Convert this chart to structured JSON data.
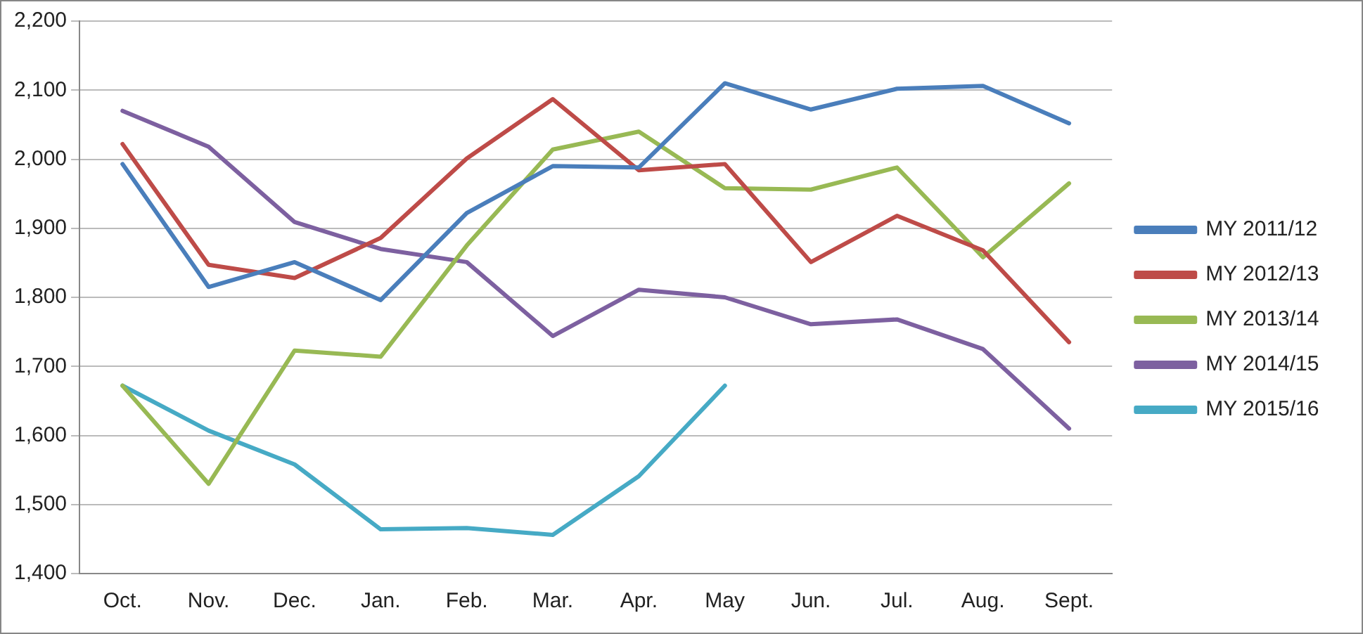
{
  "chart_data": {
    "type": "line",
    "categories": [
      "Oct.",
      "Nov.",
      "Dec.",
      "Jan.",
      "Feb.",
      "Mar.",
      "Apr.",
      "May",
      "Jun.",
      "Jul.",
      "Aug.",
      "Sept."
    ],
    "series": [
      {
        "name": "MY 2011/12",
        "color": "#4a7ebb",
        "values": [
          1993,
          1815,
          1851,
          1796,
          1922,
          1990,
          1988,
          2110,
          2072,
          2102,
          2106,
          2052
        ]
      },
      {
        "name": "MY 2012/13",
        "color": "#be4b48",
        "values": [
          2022,
          1847,
          1828,
          1886,
          2001,
          2087,
          1984,
          1993,
          1851,
          1918,
          1868,
          1735
        ]
      },
      {
        "name": "MY 2013/14",
        "color": "#98b954",
        "values": [
          1672,
          1530,
          1723,
          1714,
          1875,
          2014,
          2040,
          1958,
          1956,
          1988,
          1858,
          1965
        ]
      },
      {
        "name": "MY 2014/15",
        "color": "#7d60a0",
        "values": [
          2070,
          2018,
          1909,
          1870,
          1851,
          1744,
          1811,
          1800,
          1761,
          1768,
          1725,
          1610
        ]
      },
      {
        "name": "MY 2015/16",
        "color": "#46aac5",
        "values": [
          1672,
          1607,
          1558,
          1464,
          1466,
          1456,
          1541,
          1672,
          null,
          null,
          null,
          null
        ]
      }
    ],
    "ylim": [
      1400,
      2200
    ],
    "yticks": [
      {
        "value": 1400,
        "label": "1,400"
      },
      {
        "value": 1500,
        "label": "1,500"
      },
      {
        "value": 1600,
        "label": "1,600"
      },
      {
        "value": 1700,
        "label": "1,700"
      },
      {
        "value": 1800,
        "label": "1,800"
      },
      {
        "value": 1900,
        "label": "1,900"
      },
      {
        "value": 2000,
        "label": "2,000"
      },
      {
        "value": 2100,
        "label": "2,100"
      },
      {
        "value": 2200,
        "label": "2,200"
      }
    ],
    "grid": "y",
    "legend": "right",
    "marker": "none",
    "line_style": "solid"
  }
}
